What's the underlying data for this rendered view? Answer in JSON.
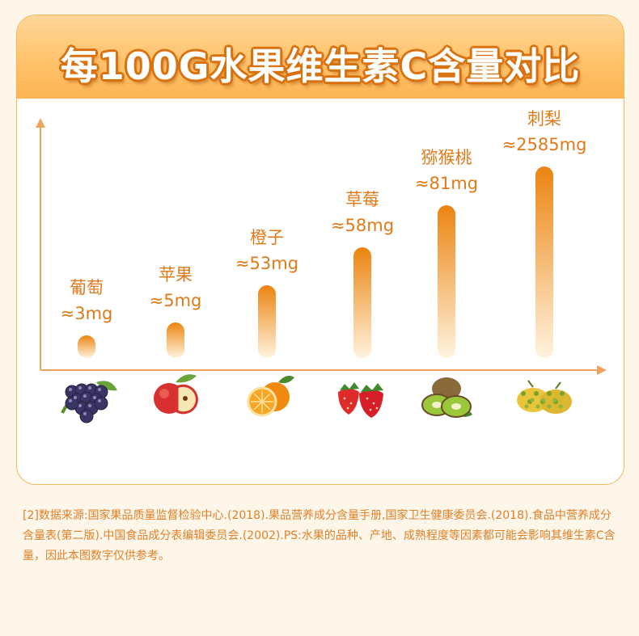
{
  "title": "每100G水果维生素C含量对比",
  "chart_data": {
    "type": "bar",
    "categories": [
      "葡萄",
      "苹果",
      "橙子",
      "草莓",
      "猕猴桃",
      "刺梨"
    ],
    "value_labels": [
      "≈3mg",
      "≈5mg",
      "≈53mg",
      "≈58mg",
      "≈81mg",
      "≈2585mg"
    ],
    "values": [
      3,
      5,
      53,
      58,
      81,
      2585
    ],
    "unit": "mg",
    "icons": [
      "grapes-icon",
      "apple-icon",
      "orange-icon",
      "strawberry-icon",
      "kiwi-icon",
      "prickly-pear-icon"
    ],
    "colors": {
      "bar_top": "#ec8410",
      "bar_bottom": "#fff3de",
      "axis": "#f0a35a",
      "label": "#e07a18"
    }
  },
  "footnote": "[2]数据来源:国家果品质量监督检验中心.(2018).果品营养成分含量手册,国家卫生健康委员会.(2018).食品中营养成分含量表(第二版).中国食品成分表编辑委员会.(2002).PS:水果的品种、产地、成熟程度等因素都可能会影响其维生素C含量，因此本图数字仅供参考。"
}
